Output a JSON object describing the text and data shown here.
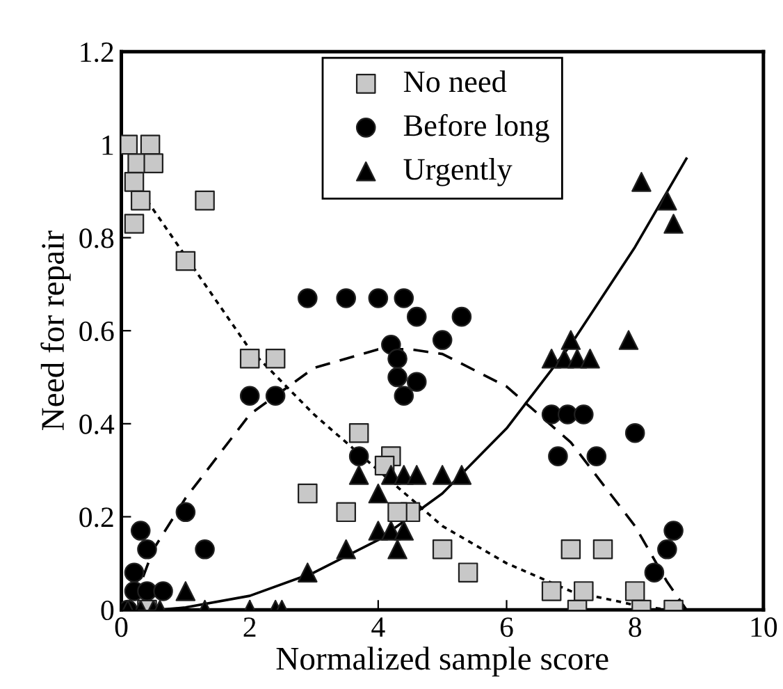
{
  "chart_data": {
    "type": "scatter",
    "xlabel": "Normalized sample score",
    "ylabel": "Need for repair",
    "xlim": [
      0,
      10
    ],
    "ylim": [
      0,
      1.2
    ],
    "xticks": [
      0,
      2,
      4,
      6,
      8,
      10
    ],
    "yticks": [
      0,
      0.2,
      0.4,
      0.6,
      0.8,
      1,
      1.2
    ],
    "grid": false,
    "legend": "top",
    "series": [
      {
        "name": "No need",
        "color": "#c8c8c8",
        "marker": "square",
        "x": [
          0.1,
          0.45,
          0.25,
          0.5,
          0.2,
          0.3,
          0.2,
          1.3,
          1.0,
          2.0,
          2.4,
          2.9,
          3.5,
          3.7,
          4.2,
          4.1,
          4.5,
          4.3,
          5.0,
          5.4,
          6.7,
          7.0,
          7.1,
          7.2,
          7.5,
          8.0,
          8.1,
          8.6,
          0.4
        ],
        "values": [
          1.0,
          1.0,
          0.96,
          0.96,
          0.92,
          0.88,
          0.83,
          0.88,
          0.75,
          0.54,
          0.54,
          0.25,
          0.21,
          0.38,
          0.33,
          0.31,
          0.21,
          0.21,
          0.13,
          0.08,
          0.04,
          0.13,
          0.0,
          0.04,
          0.13,
          0.04,
          0.0,
          0.0,
          0.0
        ]
      },
      {
        "name": "Before long",
        "color": "#000000",
        "marker": "circle",
        "x": [
          0.1,
          0.2,
          0.2,
          0.3,
          0.4,
          0.4,
          0.65,
          1.0,
          1.3,
          2.0,
          2.4,
          2.9,
          3.5,
          4.0,
          3.7,
          4.2,
          4.3,
          4.3,
          4.4,
          4.6,
          4.4,
          4.6,
          5.0,
          5.3,
          6.7,
          6.95,
          7.2,
          6.8,
          7.4,
          8.0,
          8.3,
          8.5,
          8.6
        ],
        "values": [
          0.0,
          0.04,
          0.08,
          0.17,
          0.13,
          0.04,
          0.04,
          0.21,
          0.13,
          0.46,
          0.46,
          0.67,
          0.67,
          0.67,
          0.33,
          0.57,
          0.54,
          0.5,
          0.46,
          0.49,
          0.67,
          0.63,
          0.58,
          0.63,
          0.42,
          0.42,
          0.42,
          0.33,
          0.33,
          0.38,
          0.08,
          0.13,
          0.17
        ]
      },
      {
        "name": "Urgently",
        "color": "#000000",
        "marker": "triangle",
        "x": [
          0.1,
          0.3,
          0.5,
          0.6,
          1.0,
          1.3,
          2.0,
          2.4,
          2.5,
          2.9,
          3.5,
          3.7,
          4.0,
          4.0,
          4.2,
          4.3,
          4.4,
          4.2,
          4.4,
          4.6,
          5.0,
          5.3,
          6.7,
          6.9,
          7.0,
          7.1,
          7.3,
          7.9,
          8.1,
          8.5,
          8.6
        ],
        "values": [
          0,
          0,
          0,
          0,
          0.04,
          0,
          0,
          0,
          0,
          0.08,
          0.13,
          0.29,
          0.25,
          0.17,
          0.17,
          0.13,
          0.17,
          0.29,
          0.29,
          0.29,
          0.29,
          0.29,
          0.54,
          0.54,
          0.58,
          0.54,
          0.54,
          0.58,
          0.92,
          0.88,
          0.83
        ]
      },
      {
        "type": "line",
        "color": "#000000",
        "marker": "none",
        "line_style": "dotted",
        "x": [
          0.4,
          1,
          2,
          3,
          4,
          5,
          6,
          7,
          8,
          8.5
        ],
        "values": [
          0.88,
          0.76,
          0.56,
          0.42,
          0.3,
          0.18,
          0.1,
          0.04,
          0.01,
          0
        ]
      },
      {
        "type": "line",
        "color": "#000000",
        "marker": "none",
        "line_style": "dashed",
        "x": [
          0.2,
          0.5,
          1,
          2,
          3,
          4,
          4.5,
          5,
          6,
          7,
          8,
          8.5,
          8.8
        ],
        "values": [
          0.02,
          0.13,
          0.24,
          0.42,
          0.52,
          0.56,
          0.56,
          0.55,
          0.48,
          0.36,
          0.18,
          0.06,
          0
        ]
      },
      {
        "type": "line",
        "color": "#000000",
        "marker": "none",
        "line_style": "solid",
        "x": [
          0.6,
          1,
          2,
          3,
          4,
          5,
          6,
          7,
          8,
          8.8
        ],
        "values": [
          0,
          0.005,
          0.03,
          0.08,
          0.15,
          0.25,
          0.39,
          0.57,
          0.78,
          0.97
        ]
      }
    ]
  }
}
